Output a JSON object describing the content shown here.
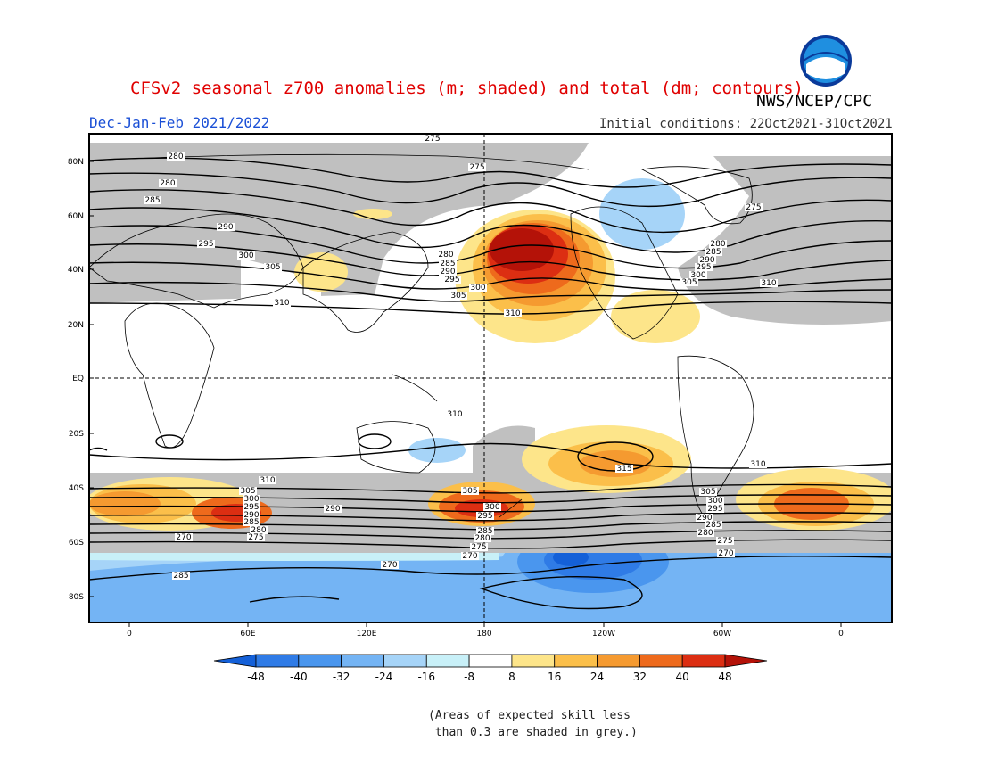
{
  "title": "CFSv2 seasonal z700 anomalies (m; shaded) and total (dm; contours)",
  "agency": "NWS/NCEP/CPC",
  "season": "Dec-Jan-Feb 2021/2022",
  "initial_conditions": "Initial conditions: 22Oct2021-31Oct2021",
  "logo_text": "NOAA",
  "lat_labels": [
    "80N",
    "60N",
    "40N",
    "20N",
    "EQ",
    "20S",
    "40S",
    "60S",
    "80S"
  ],
  "lon_labels": [
    "0",
    "60E",
    "120E",
    "180",
    "120W",
    "60W",
    "0"
  ],
  "contour_labels": {
    "north": [
      "275",
      "280",
      "275",
      "280",
      "285",
      "290",
      "295",
      "300",
      "305",
      "310",
      "280",
      "285",
      "290",
      "295",
      "300",
      "305",
      "310",
      "275",
      "280",
      "285",
      "290",
      "295",
      "300",
      "305",
      "310"
    ],
    "south": [
      "310",
      "315",
      "310",
      "310",
      "305",
      "300",
      "295",
      "290",
      "285",
      "280",
      "275",
      "270",
      "305",
      "300",
      "295",
      "285",
      "280",
      "275",
      "270",
      "270",
      "305",
      "300",
      "295",
      "290",
      "285",
      "280",
      "275",
      "270",
      "290",
      "285"
    ]
  },
  "colorbar": {
    "ticks": [
      "-48",
      "-40",
      "-32",
      "-24",
      "-16",
      "-8",
      "8",
      "16",
      "24",
      "32",
      "40",
      "48"
    ],
    "colors": [
      "#1460d8",
      "#2f7be6",
      "#4a96ee",
      "#74b4f4",
      "#a6d4f8",
      "#c8f0f8",
      "#ffffff",
      "#fde58a",
      "#fbbf4a",
      "#f59a30",
      "#ee6a1c",
      "#dc2e12",
      "#b41208"
    ]
  },
  "skill_note": "(Areas of expected skill less\n than 0.3 are shaded in grey.)"
}
